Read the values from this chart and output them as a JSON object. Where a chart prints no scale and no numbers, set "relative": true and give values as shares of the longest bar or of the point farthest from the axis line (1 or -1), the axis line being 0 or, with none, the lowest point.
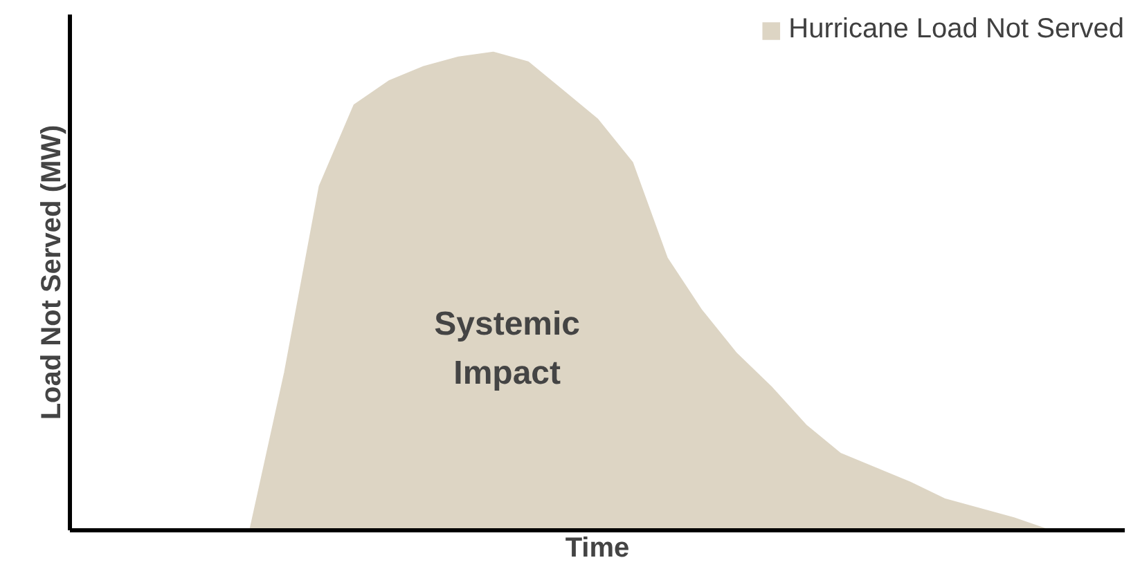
{
  "chart_data": {
    "type": "area",
    "relative": true,
    "xlabel": "Time",
    "ylabel": "Load Not Served (MW)",
    "legend": "top right",
    "categories": [
      null,
      null,
      null,
      null,
      null,
      null,
      null,
      null,
      null,
      null,
      null,
      null,
      null,
      null,
      null,
      null,
      null,
      null,
      null,
      null,
      null,
      null,
      null,
      null,
      null,
      null,
      null,
      null,
      null,
      null,
      null
    ],
    "series": [
      {
        "name": "Hurricane Load Not Served",
        "color": "#ddd5c4",
        "values": [
          0,
          0,
          0,
          0,
          0,
          0,
          0.33,
          0.72,
          0.89,
          0.94,
          0.97,
          0.99,
          1.0,
          0.98,
          0.92,
          0.86,
          0.77,
          0.57,
          0.46,
          0.37,
          0.3,
          0.22,
          0.16,
          0.13,
          0.1,
          0.065,
          0.045,
          0.025,
          0,
          0,
          0
        ]
      }
    ],
    "annotations": [
      "Systemic\nImpact"
    ]
  }
}
